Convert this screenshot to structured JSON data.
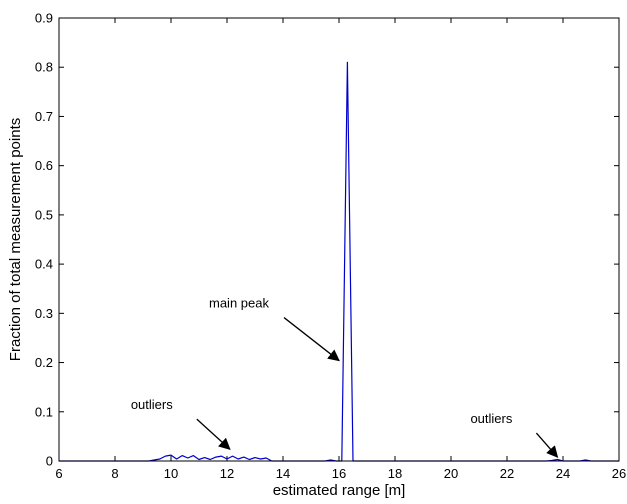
{
  "chart_data": {
    "type": "line",
    "title": "",
    "xlabel": "estimated range [m]",
    "ylabel": "Fraction of total measurement points",
    "xlim": [
      6,
      26
    ],
    "ylim": [
      0,
      0.9
    ],
    "x_ticks": [
      6,
      8,
      10,
      12,
      14,
      16,
      18,
      20,
      22,
      24,
      26
    ],
    "y_ticks": [
      0,
      0.1,
      0.2,
      0.3,
      0.4,
      0.5,
      0.6,
      0.7,
      0.8,
      0.9
    ],
    "x_tick_labels": [
      "6",
      "8",
      "10",
      "12",
      "14",
      "16",
      "18",
      "20",
      "22",
      "24",
      "26"
    ],
    "y_tick_labels": [
      "0",
      "0.1",
      "0.2",
      "0.3",
      "0.4",
      "0.5",
      "0.6",
      "0.7",
      "0.8",
      "0.9"
    ],
    "grid": false,
    "series": [
      {
        "color": "#0000cc",
        "x": [
          6.0,
          9.2,
          9.4,
          9.6,
          9.8,
          10.0,
          10.2,
          10.4,
          10.6,
          10.8,
          11.0,
          11.2,
          11.4,
          11.6,
          11.8,
          12.0,
          12.2,
          12.4,
          12.6,
          12.8,
          13.0,
          13.2,
          13.4,
          13.6,
          15.5,
          15.7,
          15.9,
          16.1,
          16.3,
          16.5,
          16.7,
          23.4,
          23.6,
          23.8,
          24.0,
          24.6,
          24.8,
          25.0,
          26.0
        ],
        "y": [
          0,
          0,
          0.002,
          0.004,
          0.01,
          0.012,
          0.004,
          0.011,
          0.006,
          0.011,
          0.003,
          0.007,
          0.003,
          0.008,
          0.01,
          0.004,
          0.01,
          0.004,
          0.008,
          0.003,
          0.007,
          0.004,
          0.006,
          0,
          0,
          0.002,
          0,
          0,
          0.81,
          0,
          0,
          0,
          0.001,
          0.003,
          0,
          0,
          0.002,
          0,
          0
        ]
      }
    ],
    "annotations": [
      {
        "text": "main peak",
        "arrow_to": {
          "x": 16.0,
          "y": 0.2
        }
      },
      {
        "text": "outliers",
        "arrow_to": {
          "x": 12.1,
          "y": 0.02
        }
      },
      {
        "text": "outliers",
        "arrow_to": {
          "x": 23.8,
          "y": 0.004
        }
      }
    ]
  }
}
